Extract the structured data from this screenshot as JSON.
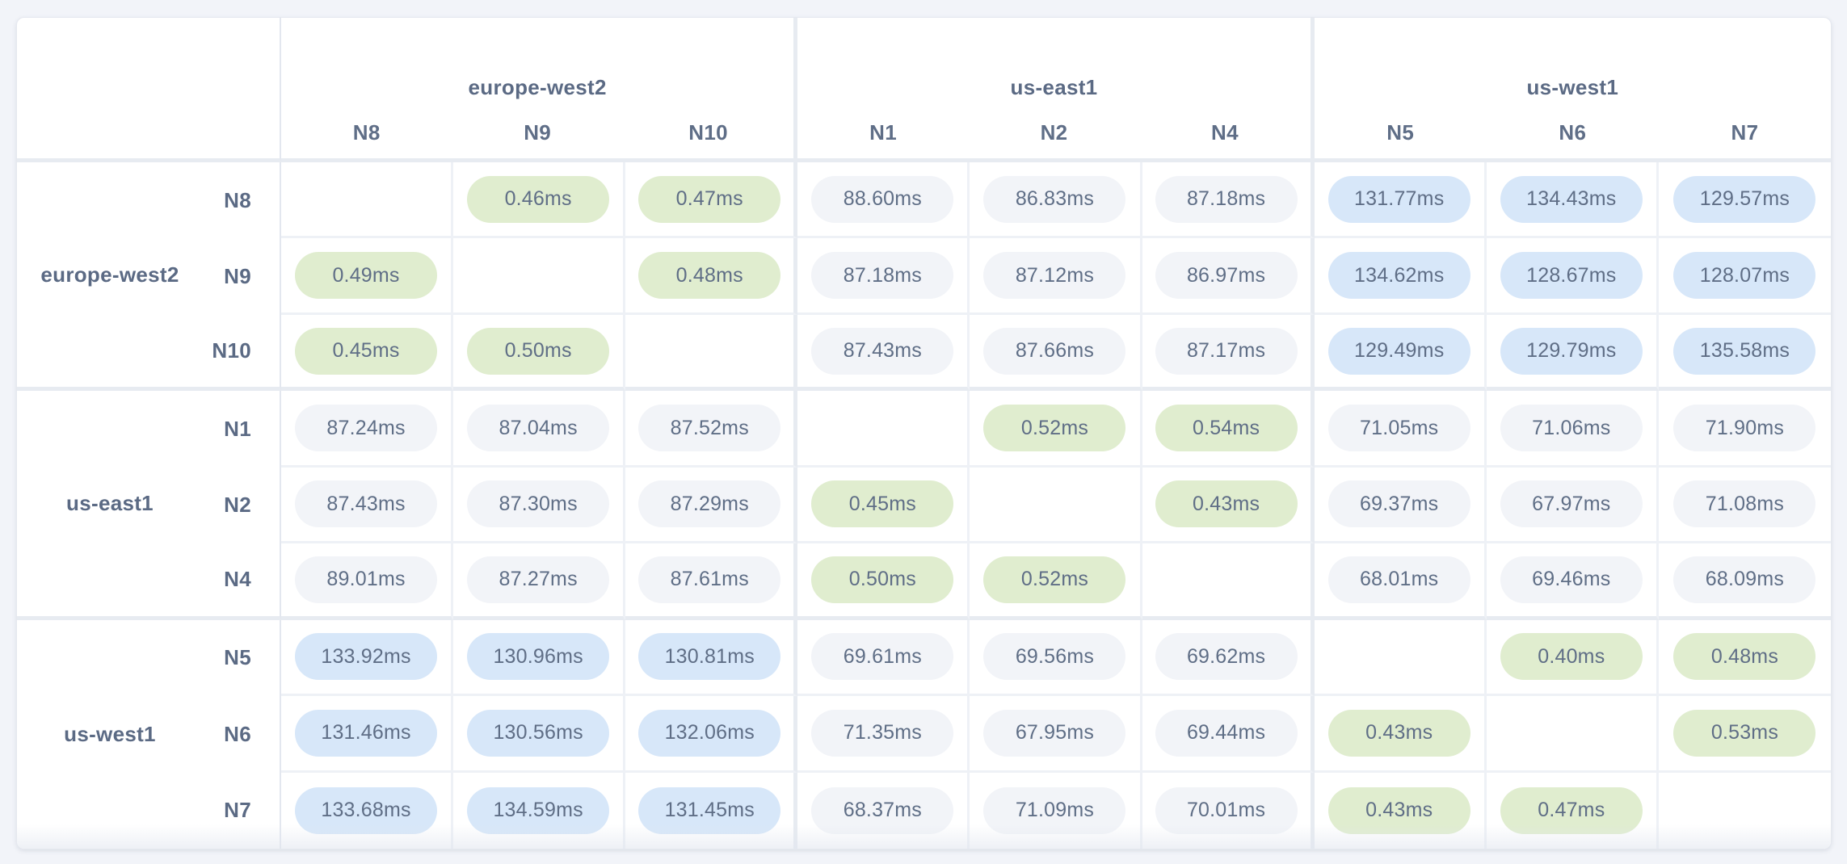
{
  "colors": {
    "intra_region_pill_bg": "#e0edcf",
    "inter_region_near_pill_bg": "#f2f4f8",
    "inter_region_far_pill_bg": "#d7e7f9",
    "pill_text": "#5f6e86",
    "label_text": "#5b6a84",
    "page_bg": "#f2f4f9",
    "card_bg": "#ffffff"
  },
  "column_groups": [
    {
      "region": "europe-west2",
      "nodes": [
        "N8",
        "N9",
        "N10"
      ]
    },
    {
      "region": "us-east1",
      "nodes": [
        "N1",
        "N2",
        "N4"
      ]
    },
    {
      "region": "us-west1",
      "nodes": [
        "N5",
        "N6",
        "N7"
      ]
    }
  ],
  "row_groups": [
    {
      "region": "europe-west2",
      "rows": [
        {
          "node": "N8",
          "cells": [
            null,
            {
              "value": "0.46ms",
              "tone": "intra"
            },
            {
              "value": "0.47ms",
              "tone": "intra"
            },
            {
              "value": "88.60ms",
              "tone": "near"
            },
            {
              "value": "86.83ms",
              "tone": "near"
            },
            {
              "value": "87.18ms",
              "tone": "near"
            },
            {
              "value": "131.77ms",
              "tone": "far"
            },
            {
              "value": "134.43ms",
              "tone": "far"
            },
            {
              "value": "129.57ms",
              "tone": "far"
            }
          ]
        },
        {
          "node": "N9",
          "cells": [
            {
              "value": "0.49ms",
              "tone": "intra"
            },
            null,
            {
              "value": "0.48ms",
              "tone": "intra"
            },
            {
              "value": "87.18ms",
              "tone": "near"
            },
            {
              "value": "87.12ms",
              "tone": "near"
            },
            {
              "value": "86.97ms",
              "tone": "near"
            },
            {
              "value": "134.62ms",
              "tone": "far"
            },
            {
              "value": "128.67ms",
              "tone": "far"
            },
            {
              "value": "128.07ms",
              "tone": "far"
            }
          ]
        },
        {
          "node": "N10",
          "cells": [
            {
              "value": "0.45ms",
              "tone": "intra"
            },
            {
              "value": "0.50ms",
              "tone": "intra"
            },
            null,
            {
              "value": "87.43ms",
              "tone": "near"
            },
            {
              "value": "87.66ms",
              "tone": "near"
            },
            {
              "value": "87.17ms",
              "tone": "near"
            },
            {
              "value": "129.49ms",
              "tone": "far"
            },
            {
              "value": "129.79ms",
              "tone": "far"
            },
            {
              "value": "135.58ms",
              "tone": "far"
            }
          ]
        }
      ]
    },
    {
      "region": "us-east1",
      "rows": [
        {
          "node": "N1",
          "cells": [
            {
              "value": "87.24ms",
              "tone": "near"
            },
            {
              "value": "87.04ms",
              "tone": "near"
            },
            {
              "value": "87.52ms",
              "tone": "near"
            },
            null,
            {
              "value": "0.52ms",
              "tone": "intra"
            },
            {
              "value": "0.54ms",
              "tone": "intra"
            },
            {
              "value": "71.05ms",
              "tone": "near"
            },
            {
              "value": "71.06ms",
              "tone": "near"
            },
            {
              "value": "71.90ms",
              "tone": "near"
            }
          ]
        },
        {
          "node": "N2",
          "cells": [
            {
              "value": "87.43ms",
              "tone": "near"
            },
            {
              "value": "87.30ms",
              "tone": "near"
            },
            {
              "value": "87.29ms",
              "tone": "near"
            },
            {
              "value": "0.45ms",
              "tone": "intra"
            },
            null,
            {
              "value": "0.43ms",
              "tone": "intra"
            },
            {
              "value": "69.37ms",
              "tone": "near"
            },
            {
              "value": "67.97ms",
              "tone": "near"
            },
            {
              "value": "71.08ms",
              "tone": "near"
            }
          ]
        },
        {
          "node": "N4",
          "cells": [
            {
              "value": "89.01ms",
              "tone": "near"
            },
            {
              "value": "87.27ms",
              "tone": "near"
            },
            {
              "value": "87.61ms",
              "tone": "near"
            },
            {
              "value": "0.50ms",
              "tone": "intra"
            },
            {
              "value": "0.52ms",
              "tone": "intra"
            },
            null,
            {
              "value": "68.01ms",
              "tone": "near"
            },
            {
              "value": "69.46ms",
              "tone": "near"
            },
            {
              "value": "68.09ms",
              "tone": "near"
            }
          ]
        }
      ]
    },
    {
      "region": "us-west1",
      "rows": [
        {
          "node": "N5",
          "cells": [
            {
              "value": "133.92ms",
              "tone": "far"
            },
            {
              "value": "130.96ms",
              "tone": "far"
            },
            {
              "value": "130.81ms",
              "tone": "far"
            },
            {
              "value": "69.61ms",
              "tone": "near"
            },
            {
              "value": "69.56ms",
              "tone": "near"
            },
            {
              "value": "69.62ms",
              "tone": "near"
            },
            null,
            {
              "value": "0.40ms",
              "tone": "intra"
            },
            {
              "value": "0.48ms",
              "tone": "intra"
            }
          ]
        },
        {
          "node": "N6",
          "cells": [
            {
              "value": "131.46ms",
              "tone": "far"
            },
            {
              "value": "130.56ms",
              "tone": "far"
            },
            {
              "value": "132.06ms",
              "tone": "far"
            },
            {
              "value": "71.35ms",
              "tone": "near"
            },
            {
              "value": "67.95ms",
              "tone": "near"
            },
            {
              "value": "69.44ms",
              "tone": "near"
            },
            {
              "value": "0.43ms",
              "tone": "intra"
            },
            null,
            {
              "value": "0.53ms",
              "tone": "intra"
            }
          ]
        },
        {
          "node": "N7",
          "cells": [
            {
              "value": "133.68ms",
              "tone": "far"
            },
            {
              "value": "134.59ms",
              "tone": "far"
            },
            {
              "value": "131.45ms",
              "tone": "far"
            },
            {
              "value": "68.37ms",
              "tone": "near"
            },
            {
              "value": "71.09ms",
              "tone": "near"
            },
            {
              "value": "70.01ms",
              "tone": "near"
            },
            {
              "value": "0.43ms",
              "tone": "intra"
            },
            {
              "value": "0.47ms",
              "tone": "intra"
            },
            null
          ]
        }
      ]
    }
  ]
}
